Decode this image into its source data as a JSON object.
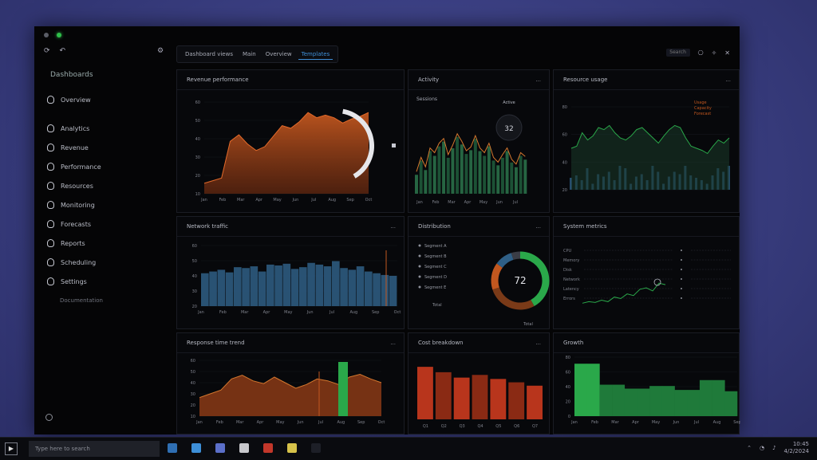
{
  "window": {
    "title": "",
    "sidebar": {
      "top_icons": [
        "refresh-icon",
        "back-icon"
      ],
      "settings_icon": "gear-icon",
      "heading": "Dashboards",
      "items": [
        {
          "label": "Overview"
        },
        {
          "label": "Analytics"
        },
        {
          "label": "Revenue"
        },
        {
          "label": "Performance"
        },
        {
          "label": "Resources"
        },
        {
          "label": "Monitoring"
        },
        {
          "label": "Forecasts"
        },
        {
          "label": "Reports"
        },
        {
          "label": "Scheduling"
        },
        {
          "label": "Settings"
        }
      ],
      "footer_link": "Documentation"
    },
    "tabs": [
      {
        "label": "Dashboard views"
      },
      {
        "label": "Main"
      },
      {
        "label": "Overview"
      },
      {
        "label": "Templates",
        "active": true
      }
    ],
    "top_right": {
      "search": "Search",
      "icons": [
        "bell-icon",
        "settings-icon",
        "close-icon"
      ]
    }
  },
  "panels": {
    "p1": {
      "title": "Revenue performance",
      "menu": "",
      "x_ticks": [
        "Jan",
        "Feb",
        "Mar",
        "Apr",
        "May",
        "Jun",
        "Jul",
        "Aug",
        "Sep",
        "Oct"
      ],
      "y_ticks": [
        "60",
        "50",
        "40",
        "30",
        "20",
        "10"
      ]
    },
    "p2": {
      "title": "Activity",
      "menu": "...",
      "subtitle": "Sessions",
      "badge": "Active",
      "gauge": "32",
      "x_ticks": [
        "Jan",
        "Feb",
        "Mar",
        "Apr",
        "May",
        "Jun",
        "Jul"
      ]
    },
    "p3": {
      "title": "Resource usage",
      "menu": "...",
      "legend": [
        "Usage",
        "Capacity",
        "Forecast"
      ],
      "y_ticks": [
        "80",
        "60",
        "40",
        "20"
      ]
    },
    "p4": {
      "title": "Network traffic",
      "menu": "...",
      "x_ticks": [
        "Jan",
        "Feb",
        "Mar",
        "Apr",
        "May",
        "Jun",
        "Jul",
        "Aug",
        "Sep",
        "Oct"
      ],
      "y_ticks": [
        "60",
        "50",
        "40",
        "30",
        "20"
      ]
    },
    "p5": {
      "title": "Distribution",
      "menu": "...",
      "legend": [
        "Segment A",
        "Segment B",
        "Segment C",
        "Segment D",
        "Segment E"
      ],
      "center": "72",
      "footer": "Total"
    },
    "p6": {
      "title": "System metrics",
      "menu": "",
      "rows": [
        "CPU",
        "Memory",
        "Disk",
        "Network",
        "Latency",
        "Errors"
      ]
    },
    "p7": {
      "title": "Response time trend",
      "menu": "...",
      "x_ticks": [
        "Jan",
        "Feb",
        "Mar",
        "Apr",
        "May",
        "Jun",
        "Jul",
        "Aug",
        "Sep",
        "Oct"
      ]
    },
    "p8": {
      "title": "Cost breakdown",
      "menu": "...",
      "x_ticks": [
        "Q1",
        "Q2",
        "Q3",
        "Q4",
        "Q5",
        "Q6",
        "Q7"
      ]
    },
    "p9": {
      "title": "Growth",
      "menu": "",
      "x_ticks": [
        "Jan",
        "Feb",
        "Mar",
        "Apr",
        "May",
        "Jun",
        "Jul",
        "Aug",
        "Sep"
      ]
    }
  },
  "taskbar": {
    "start": "▶",
    "search_placeholder": "Type here to search",
    "clock_time": "10:45",
    "clock_date": "4/2/2024"
  },
  "colors": {
    "orange": "#c2571f",
    "green": "#2aa84a",
    "blue": "#2f5f86",
    "red": "#b8351c"
  },
  "chart_data": [
    {
      "type": "area",
      "panel": "p1",
      "x": [
        1,
        2,
        3,
        4,
        5,
        6,
        7,
        8,
        9,
        10,
        11,
        12,
        13,
        14,
        15,
        16,
        17,
        18,
        19,
        20
      ],
      "values": [
        8,
        10,
        12,
        40,
        45,
        38,
        33,
        36,
        44,
        52,
        50,
        55,
        62,
        58,
        60,
        58,
        54,
        57,
        59,
        62
      ],
      "ylim": [
        0,
        70
      ],
      "title": "",
      "xlabel": "",
      "ylabel": ""
    },
    {
      "type": "bar",
      "panel": "p2",
      "values": [
        20,
        35,
        25,
        45,
        40,
        50,
        55,
        38,
        48,
        60,
        52,
        42,
        46,
        58,
        45,
        40,
        50,
        35,
        30,
        38,
        45,
        33,
        28,
        40,
        36
      ],
      "ylim": [
        0,
        80
      ],
      "title": "",
      "xlabel": "",
      "ylabel": ""
    },
    {
      "type": "line",
      "panel": "p3",
      "x": [
        1,
        2,
        3,
        4,
        5,
        6,
        7,
        8,
        9,
        10,
        11,
        12,
        13,
        14,
        15,
        16,
        17,
        18,
        19,
        20,
        21,
        22,
        23,
        24,
        25,
        26,
        27,
        28,
        29,
        30
      ],
      "values": [
        40,
        42,
        55,
        48,
        52,
        60,
        58,
        62,
        55,
        50,
        48,
        52,
        58,
        60,
        55,
        50,
        45,
        52,
        58,
        62,
        60,
        50,
        42,
        40,
        38,
        35,
        42,
        48,
        45,
        50
      ],
      "ylim": [
        0,
        80
      ],
      "title": "",
      "xlabel": "",
      "ylabel": ""
    },
    {
      "type": "bar",
      "panel": "p4",
      "values": [
        38,
        40,
        42,
        39,
        45,
        44,
        46,
        40,
        48,
        47,
        49,
        43,
        45,
        50,
        48,
        46,
        52,
        44,
        42,
        46,
        40,
        38,
        36,
        35
      ],
      "ylim": [
        0,
        70
      ],
      "title": "",
      "xlabel": "",
      "ylabel": ""
    },
    {
      "type": "pie",
      "panel": "p5",
      "values": [
        42,
        28,
        15,
        10,
        5
      ],
      "title": "",
      "xlabel": "",
      "ylabel": ""
    },
    {
      "type": "line",
      "panel": "p6",
      "values": [
        10,
        12,
        11,
        14,
        12,
        18,
        16,
        22,
        20,
        28,
        30,
        26,
        36,
        34
      ],
      "ylim": [
        0,
        60
      ],
      "title": "",
      "xlabel": "",
      "ylabel": ""
    },
    {
      "type": "area",
      "panel": "p7",
      "values": [
        20,
        24,
        28,
        40,
        44,
        38,
        35,
        42,
        36,
        30,
        34,
        40,
        38,
        34,
        42,
        45,
        40,
        36
      ],
      "ylim": [
        0,
        60
      ],
      "title": "",
      "xlabel": "",
      "ylabel": ""
    },
    {
      "type": "bar",
      "panel": "p8",
      "categories": [
        "Q1",
        "Q2",
        "Q3",
        "Q4",
        "Q5",
        "Q6",
        "Q7"
      ],
      "values": [
        78,
        70,
        62,
        66,
        60,
        55,
        50
      ],
      "ylim": [
        0,
        90
      ],
      "title": "",
      "xlabel": "",
      "ylabel": ""
    },
    {
      "type": "bar",
      "panel": "p9",
      "values": [
        80,
        80,
        48,
        48,
        42,
        42,
        46,
        46,
        40,
        40,
        55,
        55,
        38
      ],
      "ylim": [
        0,
        90
      ],
      "title": "",
      "xlabel": "",
      "ylabel": ""
    }
  ]
}
